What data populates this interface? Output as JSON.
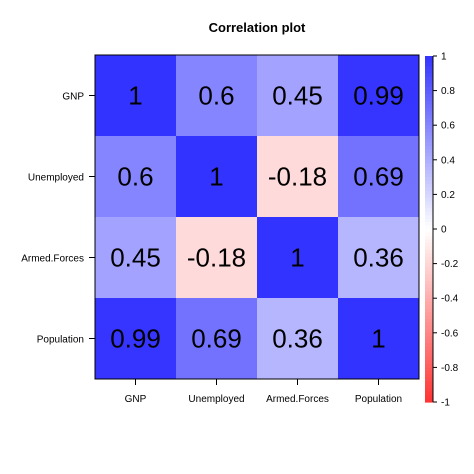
{
  "chart_data": {
    "type": "heatmap",
    "title": "Correlation plot",
    "rows": [
      "GNP",
      "Unemployed",
      "Armed.Forces",
      "Population"
    ],
    "columns": [
      "GNP",
      "Unemployed",
      "Armed.Forces",
      "Population"
    ],
    "values": [
      [
        1,
        0.6,
        0.45,
        0.99
      ],
      [
        0.6,
        1,
        -0.18,
        0.69
      ],
      [
        0.45,
        -0.18,
        1,
        0.36
      ],
      [
        0.99,
        0.69,
        0.36,
        1
      ]
    ],
    "cell_labels": [
      [
        "1",
        "0.6",
        "0.45",
        "0.99"
      ],
      [
        "0.6",
        "1",
        "-0.18",
        "0.69"
      ],
      [
        "0.45",
        "-0.18",
        "1",
        "0.36"
      ],
      [
        "0.99",
        "0.69",
        "0.36",
        "1"
      ]
    ],
    "colorbar": {
      "range": [
        -1,
        1
      ],
      "ticks": [
        1,
        0.8,
        0.6,
        0.4,
        0.2,
        0,
        -0.2,
        -0.4,
        -0.6,
        -0.8,
        -1
      ],
      "tick_labels": [
        "1",
        "0.8",
        "0.6",
        "0.4",
        "0.2",
        "0",
        "-0.2",
        "-0.4",
        "-0.6",
        "-0.8",
        "-1"
      ],
      "placement": "right"
    },
    "colors": {
      "negative": "#ff3333",
      "zero": "#ffffff",
      "positive": "#3333ff"
    }
  }
}
